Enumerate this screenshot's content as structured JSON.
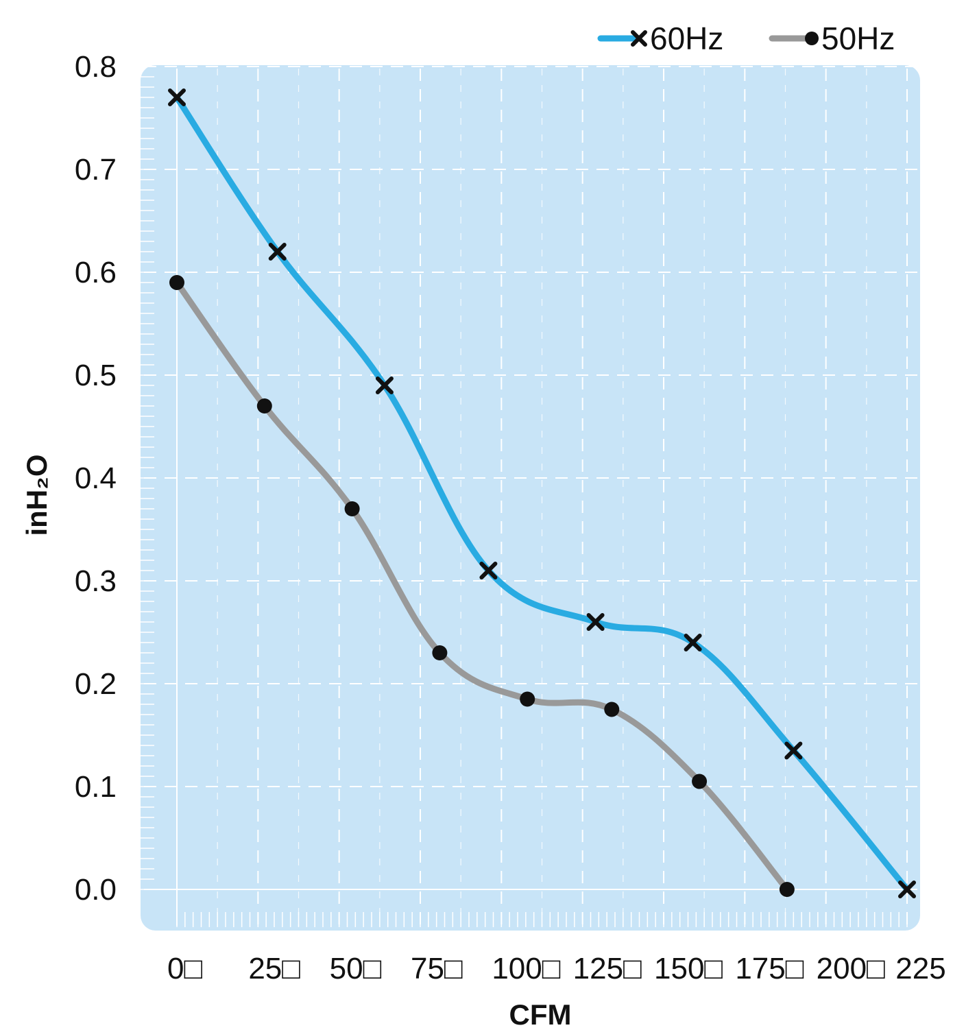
{
  "chart_data": {
    "type": "line",
    "xlabel": "CFM",
    "ylabel": "inH₂O",
    "x_ticks": [
      "0□",
      "25□",
      "50□",
      "75□",
      "100□",
      "125□",
      "150□",
      "175□",
      "200□",
      "225"
    ],
    "y_ticks": [
      "0.0",
      "0.1",
      "0.2",
      "0.3",
      "0.4",
      "0.5",
      "0.6",
      "0.7",
      "0.8"
    ],
    "xlim": [
      0,
      225
    ],
    "ylim": [
      0,
      0.8
    ],
    "grid": true,
    "legend_position": "top-right",
    "series": [
      {
        "name": "60Hz",
        "color": "#29abe2",
        "marker": "x",
        "x": [
          0,
          31,
          64,
          96,
          129,
          159,
          190,
          225
        ],
        "y": [
          0.77,
          0.62,
          0.49,
          0.31,
          0.26,
          0.24,
          0.135,
          0.0
        ]
      },
      {
        "name": "50Hz",
        "color": "#999999",
        "marker": "dot",
        "x": [
          0,
          27,
          54,
          81,
          108,
          134,
          161,
          188
        ],
        "y": [
          0.59,
          0.47,
          0.37,
          0.23,
          0.185,
          0.175,
          0.105,
          0.0
        ]
      }
    ],
    "colors": {
      "plot_background": "#c8e4f7",
      "grid": "#ffffff"
    }
  }
}
